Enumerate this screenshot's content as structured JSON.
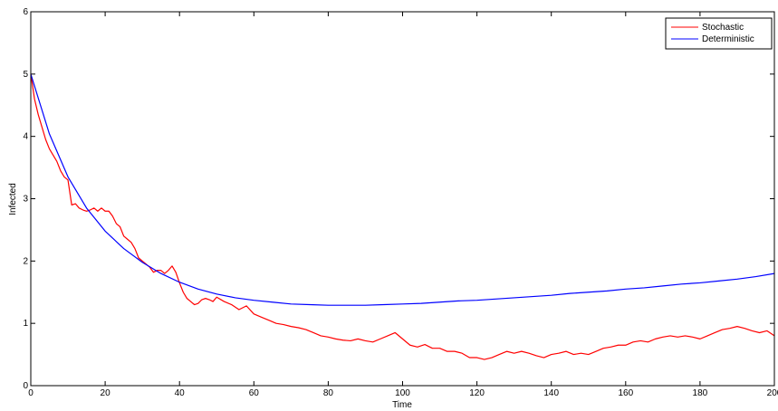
{
  "chart_data": {
    "type": "line",
    "title": "",
    "xlabel": "Time",
    "ylabel": "Infected",
    "xlim": [
      0,
      200
    ],
    "ylim": [
      0,
      6
    ],
    "xticks": [
      "0",
      "20",
      "40",
      "60",
      "80",
      "100",
      "120",
      "140",
      "160",
      "180",
      "200"
    ],
    "yticks": [
      "0",
      "1",
      "2",
      "3",
      "4",
      "5",
      "6"
    ],
    "grid": false,
    "legend_position": "top-right",
    "series": [
      {
        "name": "Stochastic",
        "color": "#ff0000",
        "x": [
          0,
          1,
          2,
          3,
          4,
          5,
          6,
          7,
          8,
          9,
          10,
          11,
          12,
          13,
          14,
          15,
          16,
          17,
          18,
          19,
          20,
          21,
          22,
          23,
          24,
          25,
          26,
          27,
          28,
          29,
          30,
          31,
          32,
          33,
          34,
          35,
          36,
          37,
          38,
          39,
          40,
          41,
          42,
          43,
          44,
          45,
          46,
          47,
          48,
          49,
          50,
          52,
          54,
          56,
          58,
          60,
          62,
          64,
          66,
          68,
          70,
          72,
          74,
          76,
          78,
          80,
          82,
          84,
          86,
          88,
          90,
          92,
          94,
          96,
          98,
          100,
          102,
          104,
          106,
          108,
          110,
          112,
          114,
          116,
          118,
          120,
          122,
          124,
          126,
          128,
          130,
          132,
          134,
          136,
          138,
          140,
          142,
          144,
          146,
          148,
          150,
          152,
          154,
          156,
          158,
          160,
          162,
          164,
          166,
          168,
          170,
          172,
          174,
          176,
          178,
          180,
          182,
          184,
          186,
          188,
          190,
          192,
          194,
          196,
          198,
          200
        ],
        "y": [
          5.0,
          4.6,
          4.35,
          4.15,
          3.95,
          3.8,
          3.7,
          3.6,
          3.45,
          3.35,
          3.3,
          2.9,
          2.92,
          2.85,
          2.82,
          2.8,
          2.82,
          2.85,
          2.8,
          2.85,
          2.8,
          2.8,
          2.72,
          2.6,
          2.55,
          2.4,
          2.35,
          2.3,
          2.2,
          2.05,
          2.0,
          1.95,
          1.9,
          1.82,
          1.85,
          1.85,
          1.8,
          1.85,
          1.92,
          1.82,
          1.65,
          1.5,
          1.4,
          1.35,
          1.3,
          1.32,
          1.38,
          1.4,
          1.38,
          1.35,
          1.42,
          1.35,
          1.3,
          1.22,
          1.28,
          1.15,
          1.1,
          1.05,
          1.0,
          0.98,
          0.95,
          0.93,
          0.9,
          0.85,
          0.8,
          0.78,
          0.75,
          0.73,
          0.72,
          0.75,
          0.72,
          0.7,
          0.75,
          0.8,
          0.85,
          0.75,
          0.65,
          0.62,
          0.66,
          0.6,
          0.6,
          0.55,
          0.55,
          0.52,
          0.45,
          0.45,
          0.42,
          0.45,
          0.5,
          0.55,
          0.52,
          0.55,
          0.52,
          0.48,
          0.45,
          0.5,
          0.52,
          0.55,
          0.5,
          0.52,
          0.5,
          0.55,
          0.6,
          0.62,
          0.65,
          0.65,
          0.7,
          0.72,
          0.7,
          0.75,
          0.78,
          0.8,
          0.78,
          0.8,
          0.78,
          0.75,
          0.8,
          0.85,
          0.9,
          0.92,
          0.95,
          0.92,
          0.88,
          0.85,
          0.88,
          0.8
        ]
      },
      {
        "name": "Deterministic",
        "color": "#0000ff",
        "x": [
          0,
          5,
          10,
          15,
          20,
          25,
          30,
          35,
          40,
          45,
          50,
          55,
          60,
          65,
          70,
          75,
          80,
          85,
          90,
          95,
          100,
          105,
          110,
          115,
          120,
          125,
          130,
          135,
          140,
          145,
          150,
          155,
          160,
          165,
          170,
          175,
          180,
          185,
          190,
          195,
          200
        ],
        "y": [
          5.0,
          4.04,
          3.35,
          2.85,
          2.48,
          2.2,
          1.98,
          1.8,
          1.66,
          1.55,
          1.47,
          1.41,
          1.37,
          1.34,
          1.31,
          1.3,
          1.29,
          1.29,
          1.29,
          1.3,
          1.31,
          1.32,
          1.34,
          1.36,
          1.37,
          1.39,
          1.41,
          1.43,
          1.45,
          1.48,
          1.5,
          1.52,
          1.55,
          1.57,
          1.6,
          1.63,
          1.65,
          1.68,
          1.71,
          1.75,
          1.8
        ]
      }
    ]
  }
}
